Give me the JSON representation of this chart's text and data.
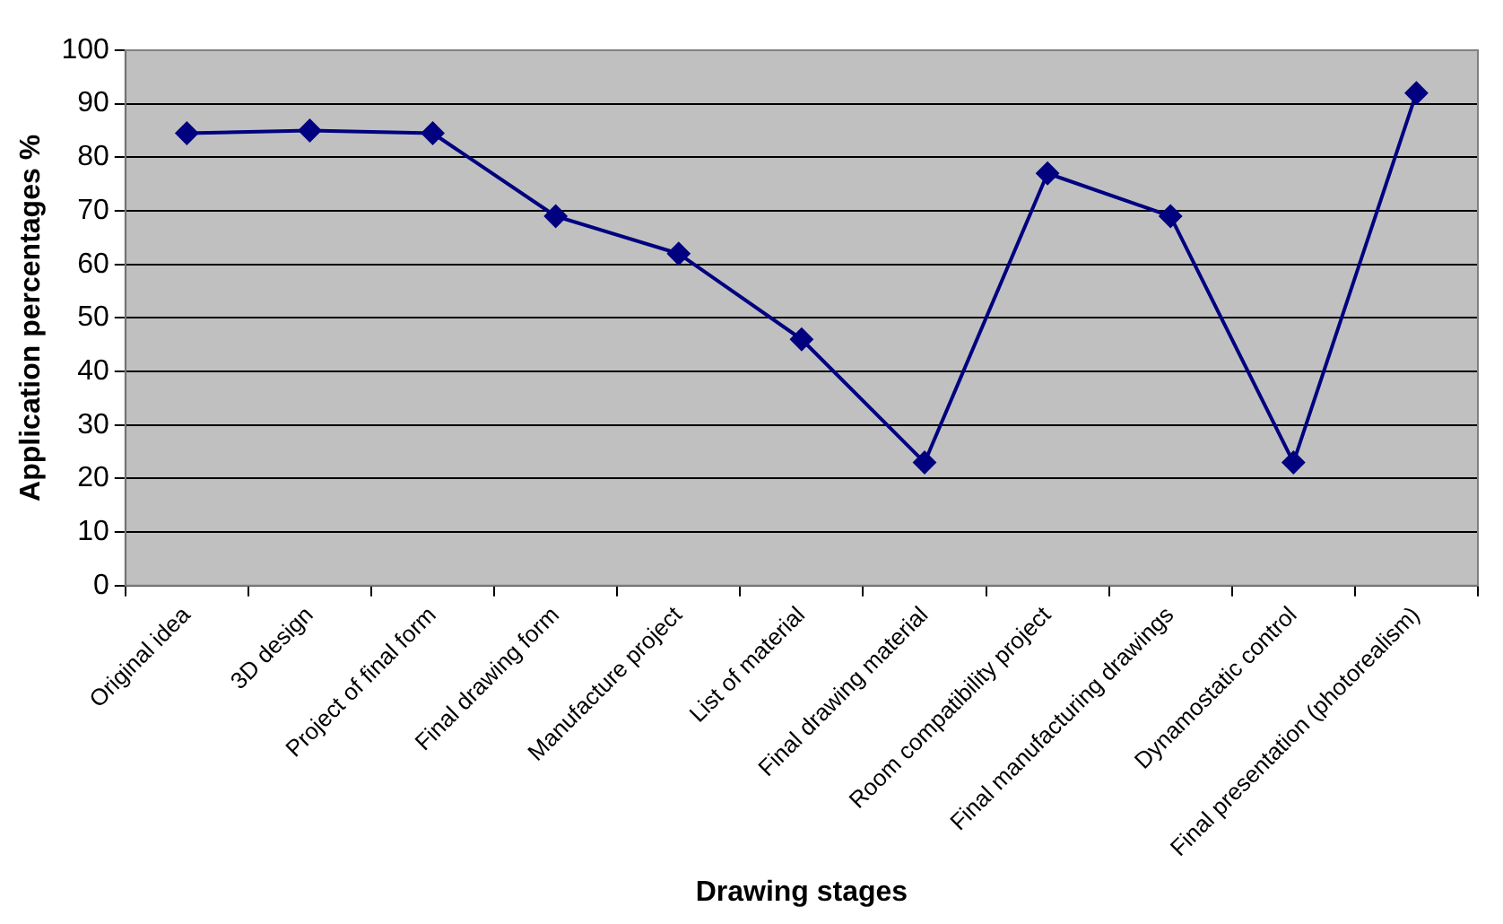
{
  "chart_data": {
    "type": "line",
    "xlabel": "Drawing stages",
    "ylabel": "Application percentages %",
    "categories": [
      "Original idea",
      "3D design",
      "Project of final form",
      "Final drawing form",
      "Manufacture project",
      "List of material",
      "Final drawing material",
      "Room compatibility project",
      "Final manufacturing drawings",
      "Dynamostatic control",
      "Final presentation (photorealism)"
    ],
    "series": [
      {
        "color": "#000080",
        "values": [
          84.5,
          85,
          84.5,
          69,
          62,
          46,
          23,
          77,
          69,
          23,
          92
        ]
      }
    ],
    "ylim": [
      0,
      100
    ],
    "yticks": [
      0,
      10,
      20,
      30,
      40,
      50,
      60,
      70,
      80,
      90,
      100
    ],
    "grid": "y",
    "legend": false,
    "marker": "diamond",
    "line_style": "solid"
  }
}
